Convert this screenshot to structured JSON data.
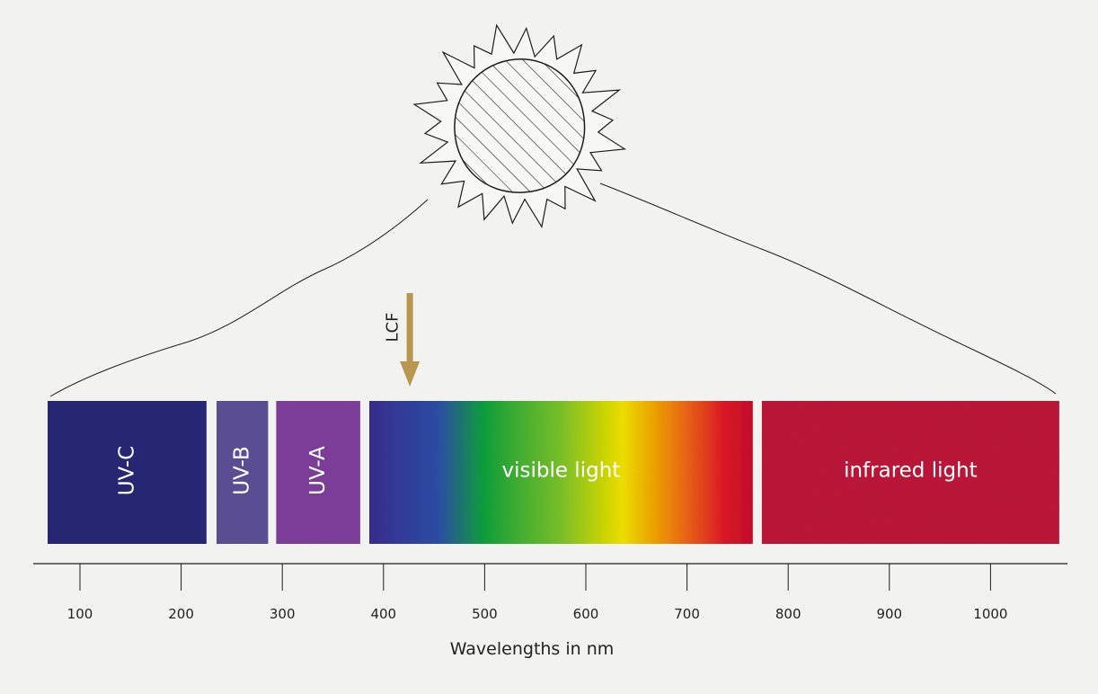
{
  "diagram": {
    "axis": {
      "title": "Wavelengths in nm",
      "ticks": [
        100,
        200,
        300,
        400,
        500,
        600,
        700,
        800,
        900,
        1000
      ]
    },
    "bands": [
      {
        "id": "uvc",
        "label": "UV-C",
        "from": 68,
        "to": 225,
        "color": "#2b2c76",
        "vertical": true
      },
      {
        "id": "uvb",
        "label": "UV-B",
        "from": 235,
        "to": 286,
        "color": "#5d5195",
        "vertical": true
      },
      {
        "id": "uva",
        "label": "UV-A",
        "from": 294,
        "to": 377,
        "color": "#7f3f9c",
        "vertical": true
      },
      {
        "id": "visible",
        "label": "visible light",
        "from": 386,
        "to": 765,
        "vertical": false
      },
      {
        "id": "infrared",
        "label": "infrared light",
        "from": 774,
        "to": 1068,
        "color": "#bd1a3b",
        "vertical": false
      }
    ],
    "visible_gradient": [
      "#3a2f8f",
      "#2f4fa8",
      "#16a23c",
      "#7cc22c",
      "#f1e200",
      "#ef7a17",
      "#e01f2a",
      "#c5162f"
    ],
    "marker": {
      "label": "LCF",
      "value": 426,
      "color": "#b89650"
    },
    "colors": {
      "background": "#f2f2f1",
      "line": "#1c1c1c"
    }
  }
}
